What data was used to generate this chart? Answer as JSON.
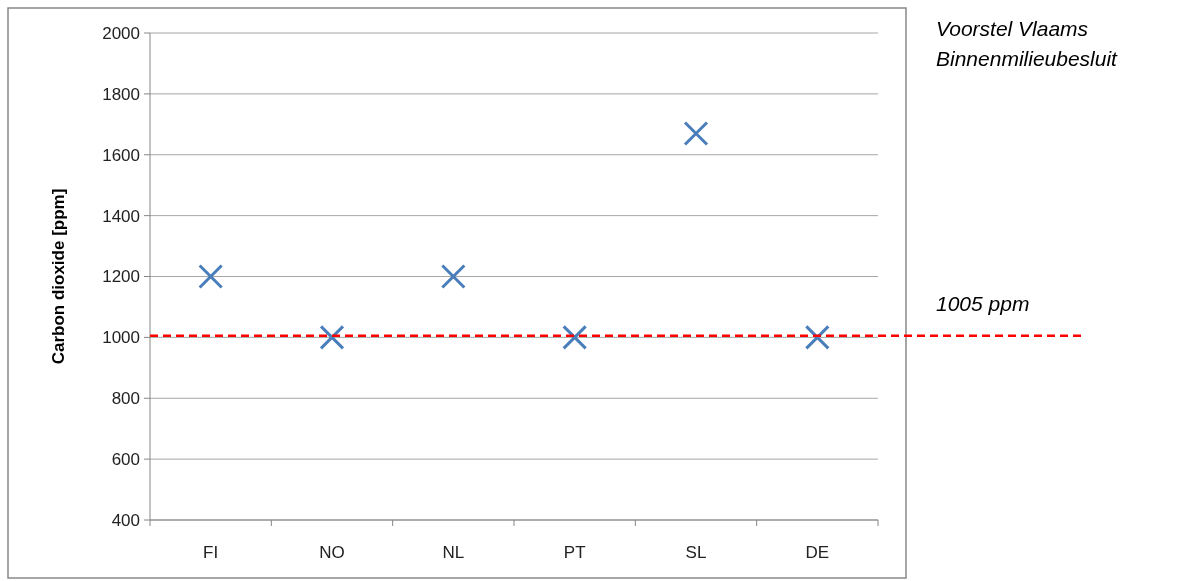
{
  "chart_data": {
    "type": "scatter",
    "ylabel": "Carbon dioxide [ppm]",
    "categories": [
      "FI",
      "NO",
      "NL",
      "PT",
      "SL",
      "DE"
    ],
    "series": [
      {
        "color": "#4a7ebb",
        "values": [
          1200,
          1000,
          1200,
          1000,
          1670,
          1000
        ]
      }
    ],
    "ylim": [
      400,
      2000
    ],
    "yticks": [
      400,
      600,
      800,
      1000,
      1200,
      1400,
      1600,
      1800,
      2000
    ],
    "grid": "y",
    "marker": "cross",
    "ref_lines": [
      {
        "axis": "y",
        "value": 1005,
        "label": "1005 ppm",
        "color": "#ff0000",
        "line_style": "dashed"
      }
    ],
    "annotations": [
      "Voorstel Vlaams\nBinnenmilieubesluit"
    ]
  }
}
